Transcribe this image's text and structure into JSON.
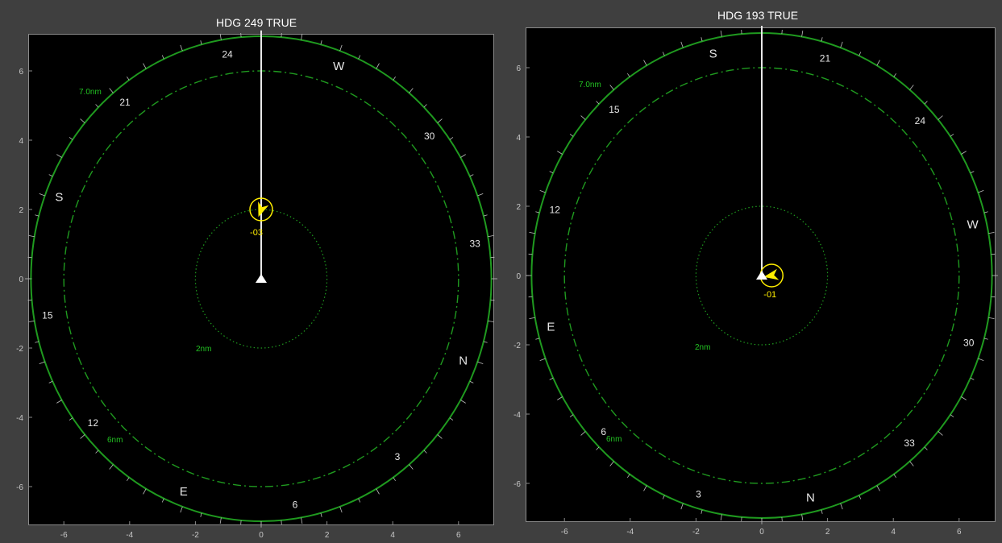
{
  "colors": {
    "background": "#3f3f3f",
    "plot_bg": "#000000",
    "ring": "#1f9a1f",
    "label_green": "#22c322",
    "intruder": "#ffee00",
    "ownship": "#ffffff",
    "tick_text": "#c8c8c8",
    "compass_text": "#e6e6e6"
  },
  "panels": [
    {
      "title": "HDG 249  TRUE",
      "heading_deg": 249,
      "x_ticks": [
        "-6",
        "-4",
        "-2",
        "0",
        "2",
        "4",
        "6"
      ],
      "y_ticks": [
        "6",
        "4",
        "2",
        "0",
        "-2",
        "-4",
        "-6"
      ],
      "rings": [
        {
          "radius_nm": 7,
          "style": "solid",
          "label": "7.0nm"
        },
        {
          "radius_nm": 6,
          "style": "dashdot",
          "label": "6nm"
        },
        {
          "radius_nm": 2,
          "style": "dotted",
          "label": "2nm"
        }
      ],
      "compass_labels": [
        "24",
        "W",
        "30",
        "33",
        "N",
        "3",
        "6",
        "E",
        "12",
        "15",
        "S",
        "21"
      ],
      "intruder": {
        "x_nm": 0,
        "y_nm": 2.0,
        "label": "-03",
        "symbol": "arrowhead-icon"
      },
      "ownship": {
        "x_nm": 0,
        "y_nm": 0,
        "symbol": "triangle-icon"
      }
    },
    {
      "title": "HDG 193  TRUE",
      "heading_deg": 193,
      "x_ticks": [
        "-6",
        "-4",
        "-2",
        "0",
        "2",
        "4",
        "6"
      ],
      "y_ticks": [
        "6",
        "4",
        "2",
        "0",
        "-2",
        "-4",
        "-6"
      ],
      "rings": [
        {
          "radius_nm": 7,
          "style": "solid",
          "label": "7.0nm"
        },
        {
          "radius_nm": 6,
          "style": "dashdot",
          "label": "6nm"
        },
        {
          "radius_nm": 2,
          "style": "dotted",
          "label": "2nm"
        }
      ],
      "compass_labels": [
        "S",
        "21",
        "24",
        "W",
        "30",
        "33",
        "N",
        "3",
        "6",
        "E",
        "12",
        "15"
      ],
      "intruder": {
        "x_nm": 0.3,
        "y_nm": 0.0,
        "label": "-01",
        "symbol": "arrowhead-icon"
      },
      "ownship": {
        "x_nm": 0,
        "y_nm": 0,
        "symbol": "triangle-icon"
      }
    }
  ]
}
